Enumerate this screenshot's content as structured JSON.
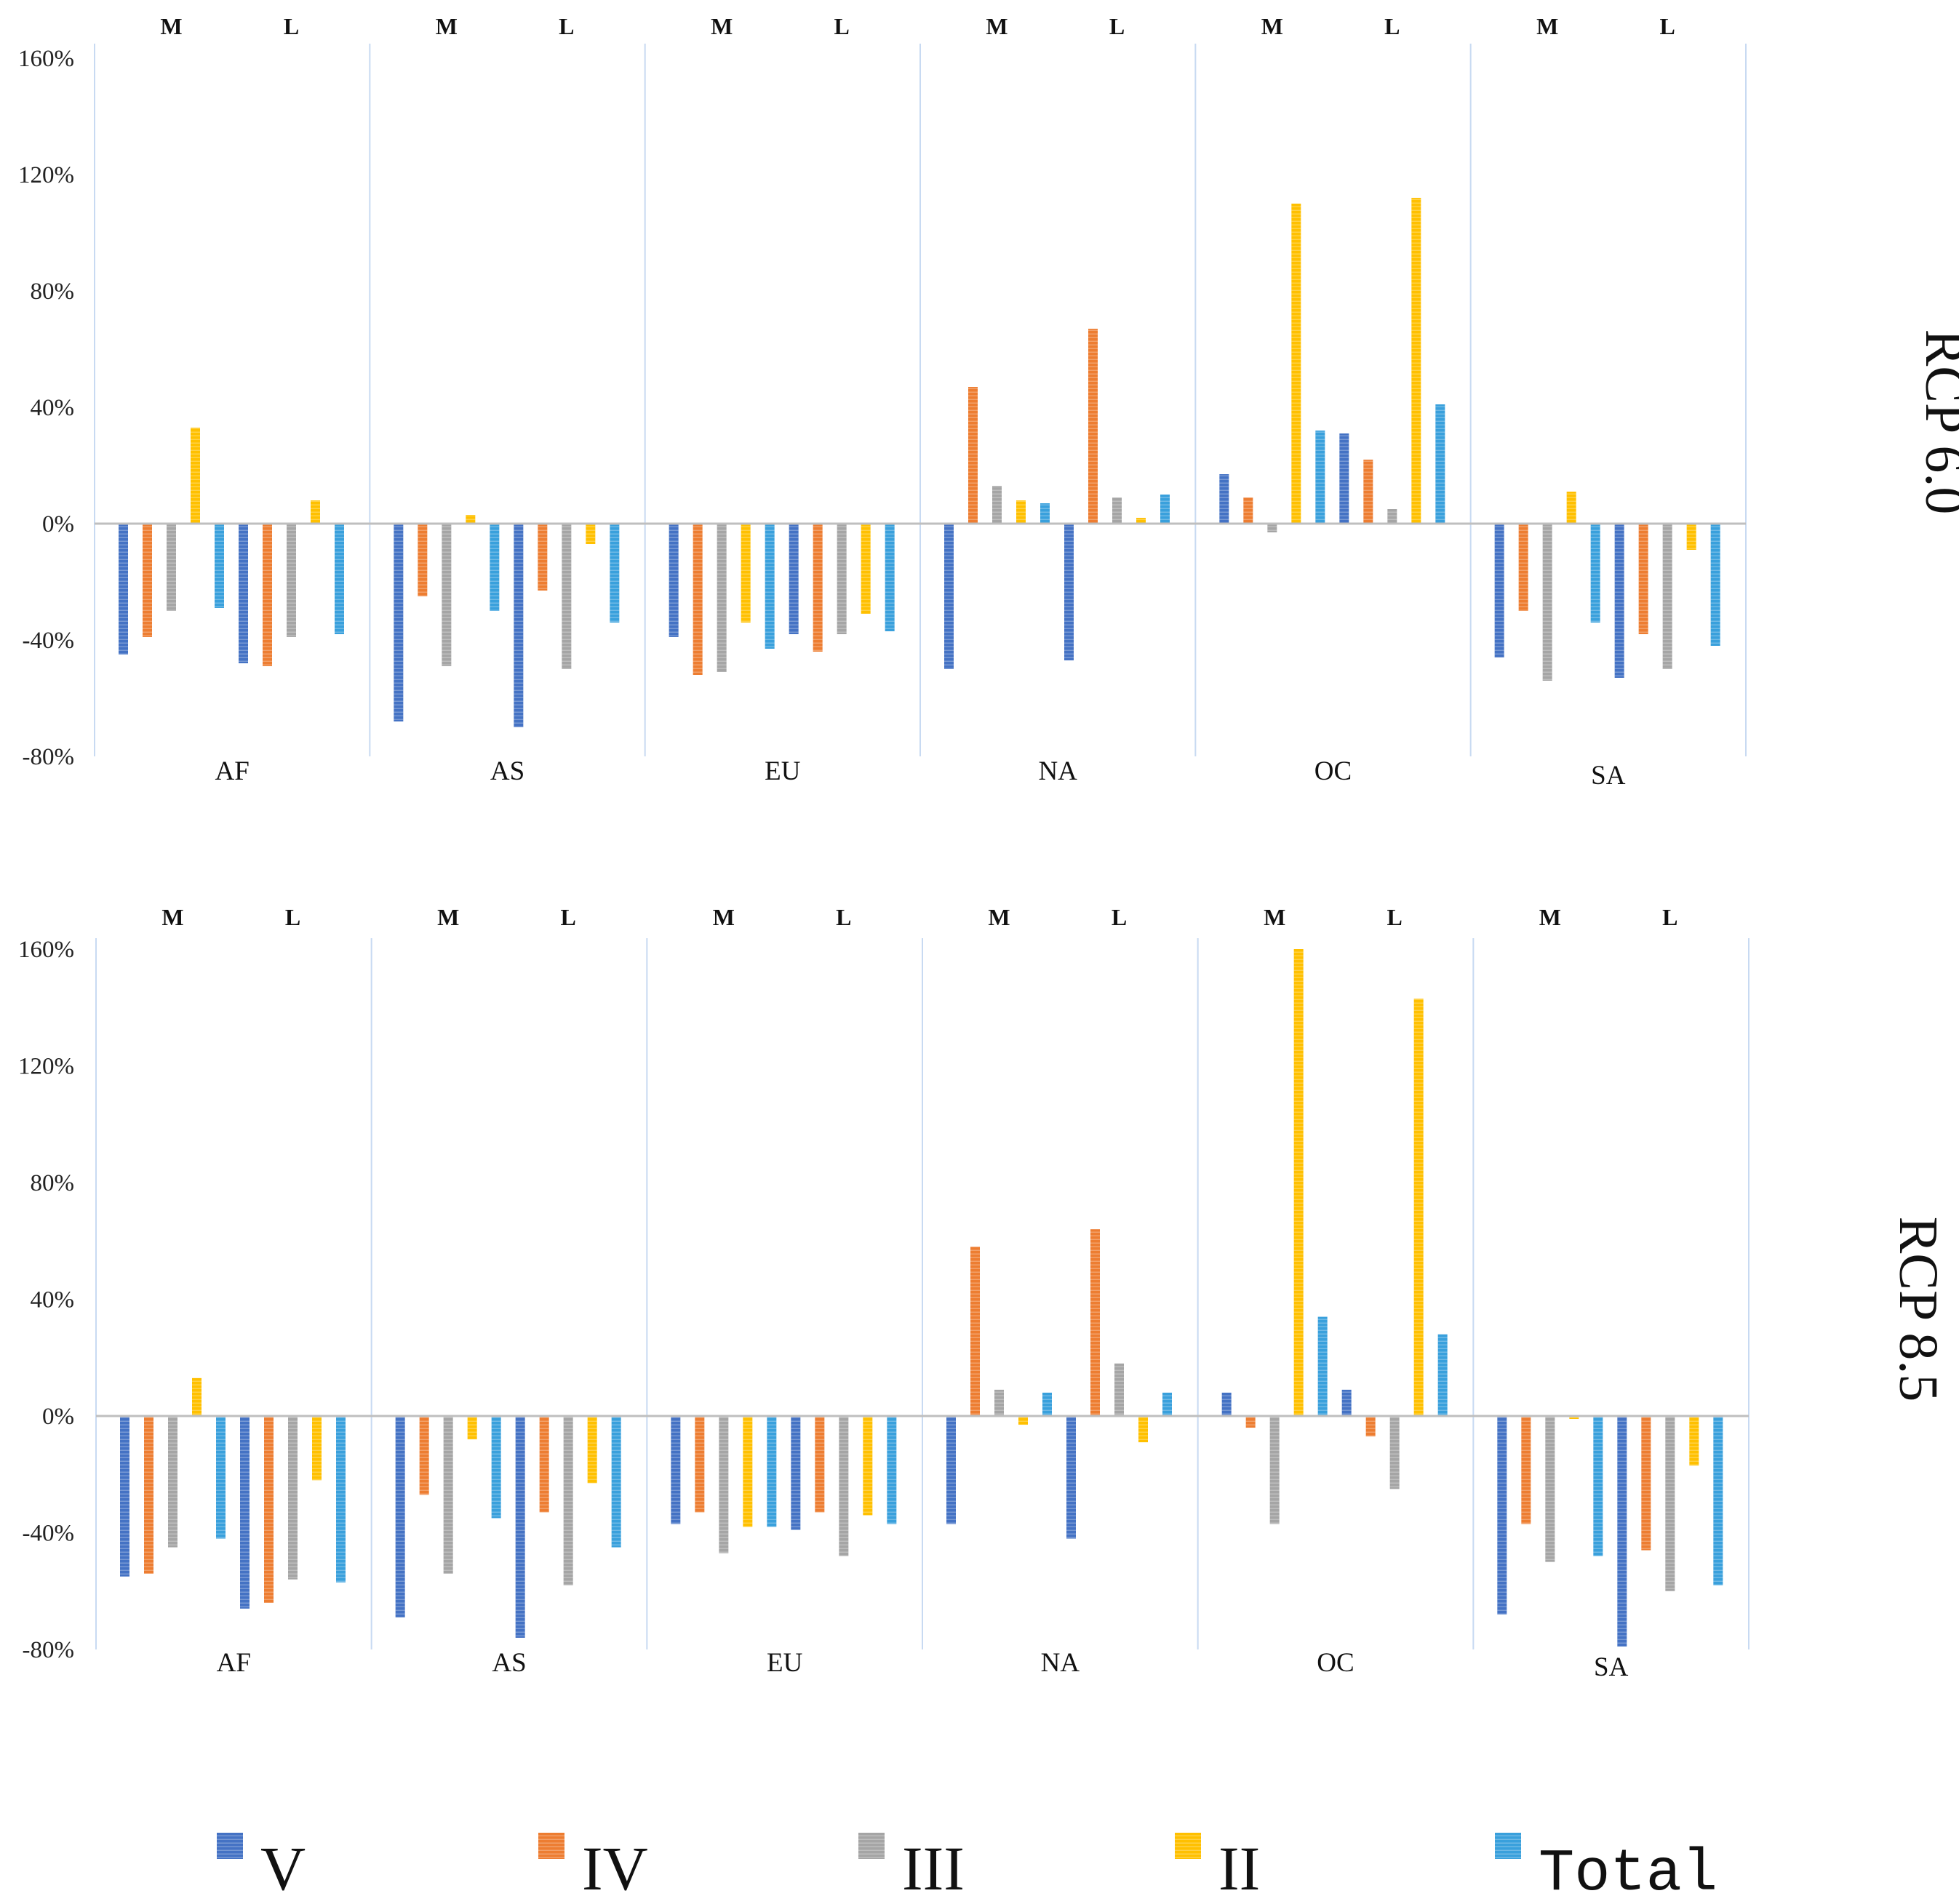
{
  "colors": {
    "V": "#4472c4",
    "IV": "#ed7d31",
    "III": "#a5a5a5",
    "II": "#ffc000",
    "Total": "#39a0dc"
  },
  "chart_data": [
    {
      "type": "bar",
      "title": "RCP 6.0",
      "ylim": [
        -80,
        160
      ],
      "yticks": [
        "160%",
        "120%",
        "80%",
        "40%",
        "0%",
        "-40%",
        "-80%"
      ],
      "yticks_values": [
        160,
        120,
        80,
        40,
        0,
        -40,
        -80
      ],
      "regions": [
        "AF",
        "AS",
        "EU",
        "NA",
        "OC",
        "SA"
      ],
      "periods": [
        "M",
        "L"
      ],
      "series_names": [
        "V",
        "IV",
        "III",
        "II",
        "Total"
      ],
      "values": {
        "AF": {
          "M": [
            -45,
            -39,
            -30,
            33,
            -29
          ],
          "L": [
            -48,
            -49,
            -39,
            8,
            -38
          ]
        },
        "AS": {
          "M": [
            -68,
            -25,
            -49,
            3,
            -30
          ],
          "L": [
            -70,
            -23,
            -50,
            -7,
            -34
          ]
        },
        "EU": {
          "M": [
            -39,
            -52,
            -51,
            -34,
            -43
          ],
          "L": [
            -38,
            -44,
            -38,
            -31,
            -37
          ]
        },
        "NA": {
          "M": [
            -50,
            47,
            13,
            8,
            7
          ],
          "L": [
            -47,
            67,
            9,
            2,
            10
          ]
        },
        "OC": {
          "M": [
            17,
            9,
            -3,
            110,
            32
          ],
          "L": [
            31,
            22,
            5,
            112,
            41
          ]
        },
        "SA": {
          "M": [
            -46,
            -30,
            -54,
            11,
            -34
          ],
          "L": [
            -53,
            -38,
            -50,
            -9,
            -42
          ]
        }
      }
    },
    {
      "type": "bar",
      "title": "RCP 8.5",
      "ylim": [
        -80,
        160
      ],
      "yticks": [
        "160%",
        "120%",
        "80%",
        "40%",
        "0%",
        "-40%",
        "-80%"
      ],
      "yticks_values": [
        160,
        120,
        80,
        40,
        0,
        -40,
        -80
      ],
      "regions": [
        "AF",
        "AS",
        "EU",
        "NA",
        "OC",
        "SA"
      ],
      "periods": [
        "M",
        "L"
      ],
      "series_names": [
        "V",
        "IV",
        "III",
        "II",
        "Total"
      ],
      "values": {
        "AF": {
          "M": [
            -55,
            -54,
            -45,
            13,
            -42
          ],
          "L": [
            -66,
            -64,
            -56,
            -22,
            -57
          ]
        },
        "AS": {
          "M": [
            -69,
            -27,
            -54,
            -8,
            -35
          ],
          "L": [
            -76,
            -33,
            -58,
            -23,
            -45
          ]
        },
        "EU": {
          "M": [
            -37,
            -33,
            -47,
            -38,
            -38
          ],
          "L": [
            -39,
            -33,
            -48,
            -34,
            -37
          ]
        },
        "NA": {
          "M": [
            -37,
            58,
            9,
            -3,
            8
          ],
          "L": [
            -42,
            64,
            18,
            -9,
            8
          ]
        },
        "OC": {
          "M": [
            8,
            -4,
            -37,
            160,
            34
          ],
          "L": [
            9,
            -7,
            -25,
            143,
            28
          ]
        },
        "SA": {
          "M": [
            -68,
            -37,
            -50,
            -1,
            -48
          ],
          "L": [
            -79,
            -46,
            -60,
            -17,
            -58
          ]
        }
      }
    }
  ],
  "legend": [
    {
      "key": "V",
      "label": "V"
    },
    {
      "key": "IV",
      "label": "IV"
    },
    {
      "key": "III",
      "label": "III"
    },
    {
      "key": "II",
      "label": "II"
    },
    {
      "key": "Total",
      "label": "Total"
    }
  ]
}
